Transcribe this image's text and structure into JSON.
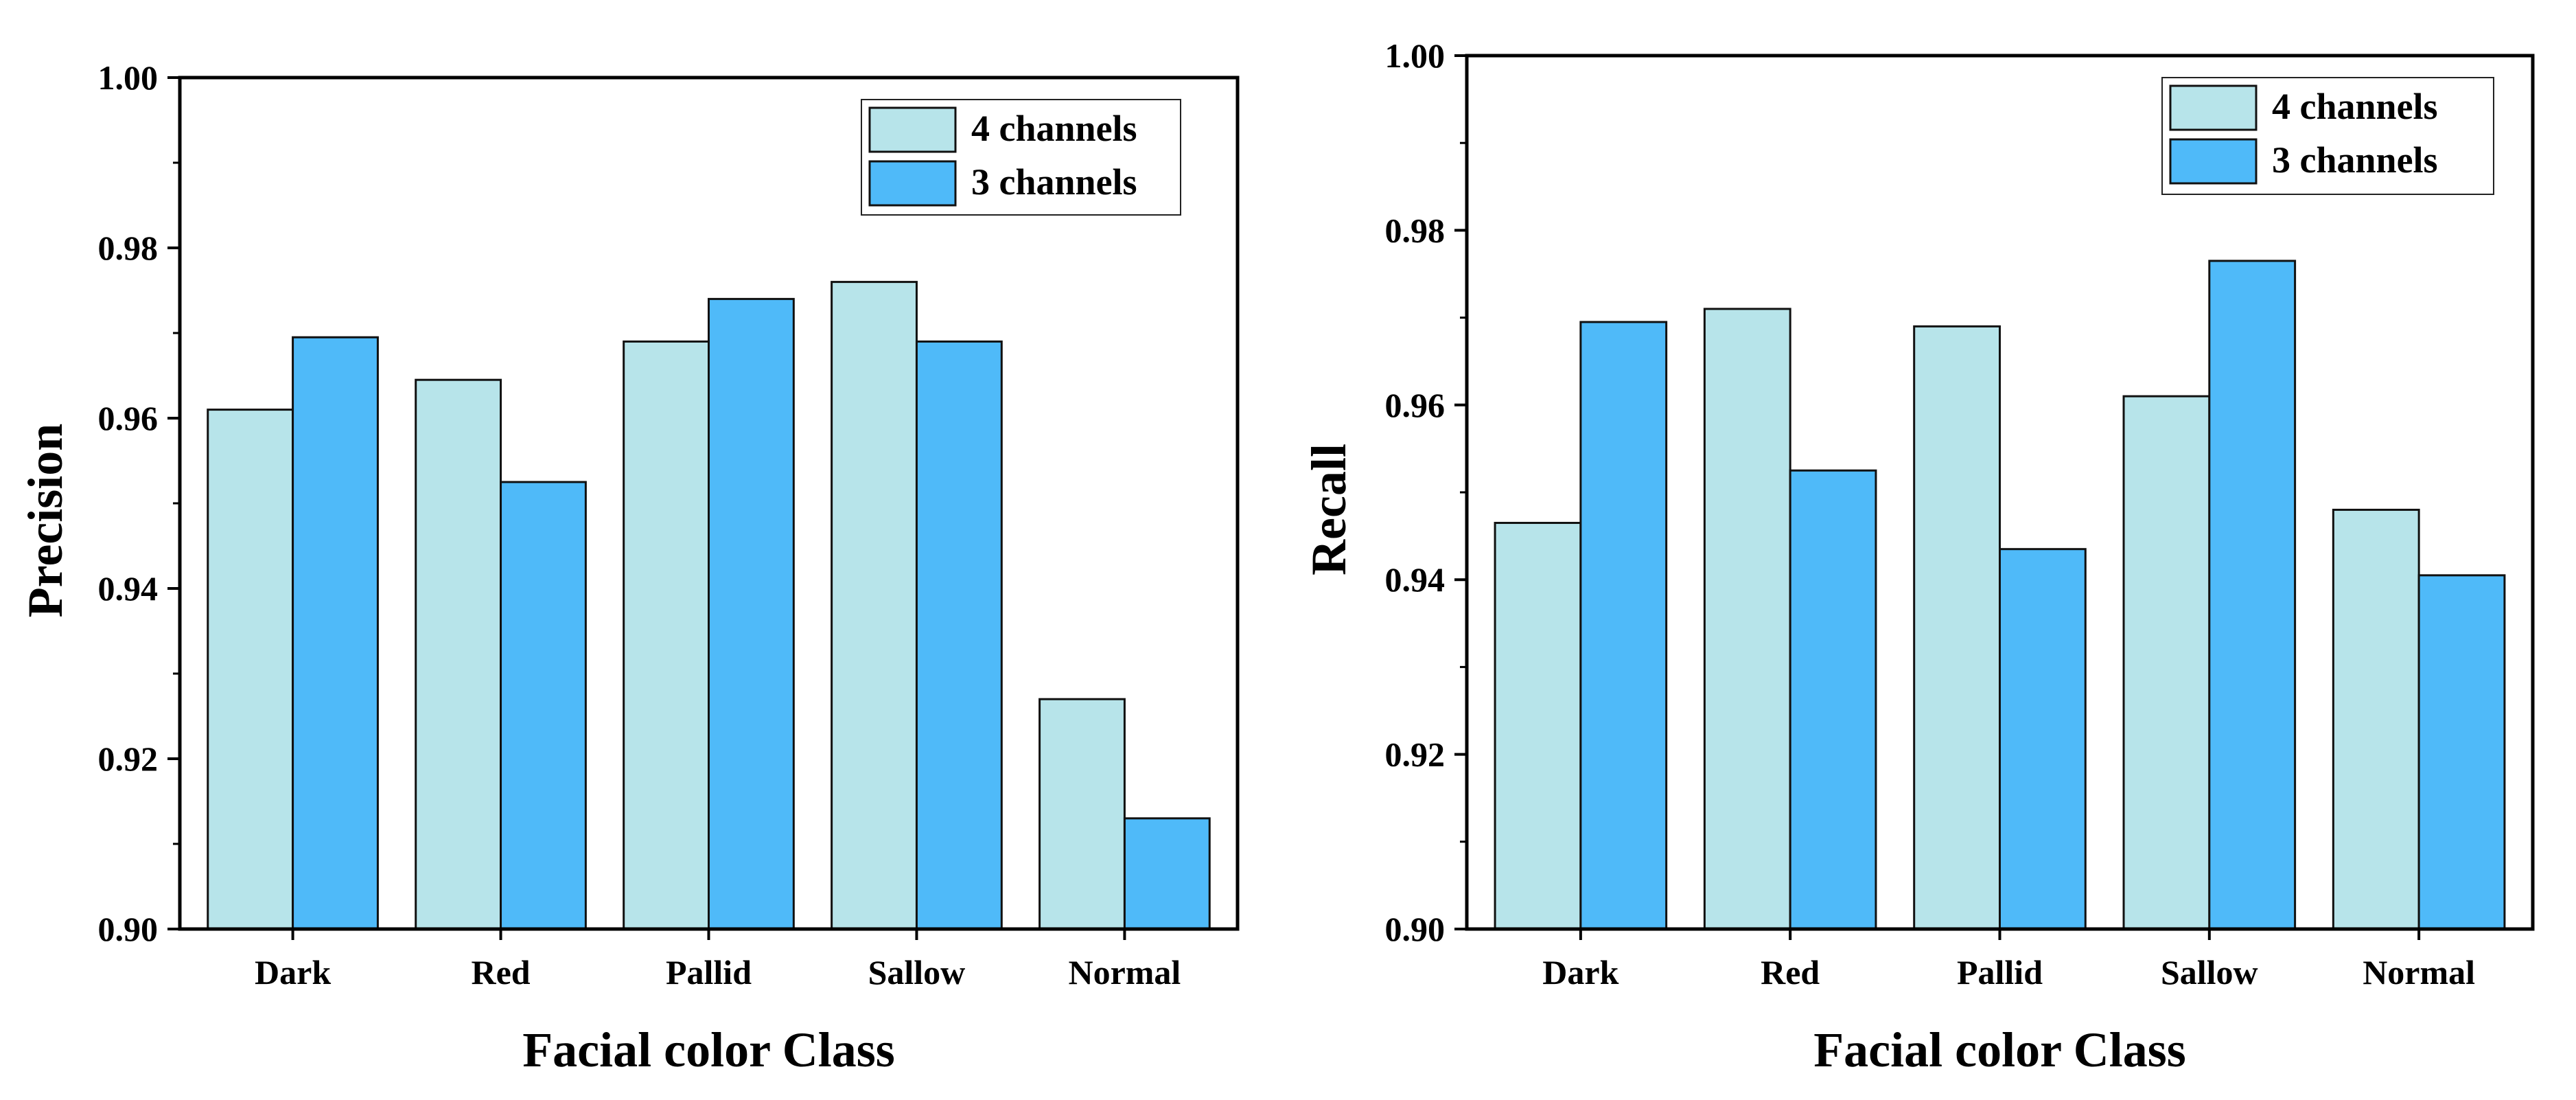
{
  "chart_data": [
    {
      "type": "bar",
      "title": "",
      "xlabel": "Facial color Class",
      "ylabel": "Precision",
      "categories": [
        "Dark",
        "Red",
        "Pallid",
        "Sallow",
        "Normal"
      ],
      "ylim": [
        0.9,
        1.0
      ],
      "yticks": [
        "0.90",
        "0.92",
        "0.94",
        "0.96",
        "0.98",
        "1.00"
      ],
      "series": [
        {
          "name": "4 channels",
          "color": "#b7e4ea",
          "values": [
            0.961,
            0.9645,
            0.969,
            0.976,
            0.927
          ]
        },
        {
          "name": "3 channels",
          "color": "#4fbaf9",
          "values": [
            0.9695,
            0.9525,
            0.974,
            0.969,
            0.913
          ]
        }
      ],
      "legend": "top-right"
    },
    {
      "type": "bar",
      "title": "",
      "xlabel": "Facial color Class",
      "ylabel": "Recall",
      "categories": [
        "Dark",
        "Red",
        "Pallid",
        "Sallow",
        "Normal"
      ],
      "ylim": [
        0.9,
        1.0
      ],
      "yticks": [
        "0.90",
        "0.92",
        "0.94",
        "0.96",
        "0.98",
        "1.00"
      ],
      "series": [
        {
          "name": "4 channels",
          "color": "#b7e4ea",
          "values": [
            0.9465,
            0.971,
            0.969,
            0.961,
            0.948
          ]
        },
        {
          "name": "3 channels",
          "color": "#4fbaf9",
          "values": [
            0.9695,
            0.9525,
            0.9435,
            0.9765,
            0.9405
          ]
        }
      ],
      "legend": "top-right"
    }
  ]
}
